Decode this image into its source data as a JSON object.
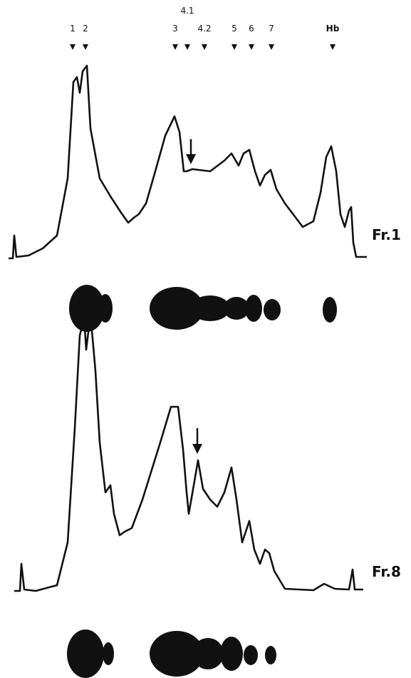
{
  "markers": [
    {
      "label": "1"
    },
    {
      "label": "2"
    },
    {
      "label": "3"
    },
    {
      "label": "4.1"
    },
    {
      "label": "4.2"
    },
    {
      "label": "5"
    },
    {
      "label": "6"
    },
    {
      "label": "7"
    },
    {
      "label": "Hb"
    }
  ],
  "panels": [
    {
      "label": "Fr.1"
    },
    {
      "label": "Fr.8"
    }
  ]
}
